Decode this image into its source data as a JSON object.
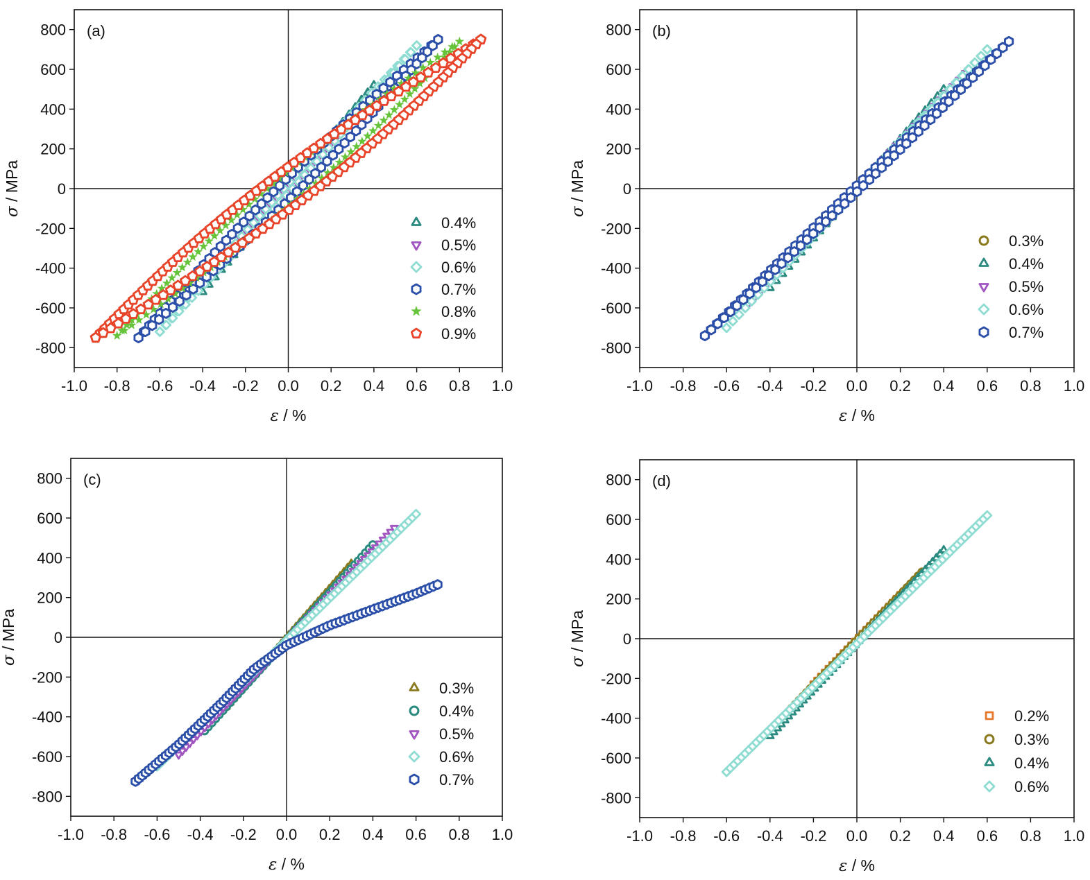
{
  "chart_data": [
    {
      "type": "scatter",
      "panel_label": "(a)",
      "xlabel_symbol": "ε",
      "xlabel_unit": " / %",
      "ylabel_symbol": "σ",
      "ylabel_unit": " / MPa",
      "xlim": [
        -1.0,
        1.0
      ],
      "ylim": [
        -900,
        900
      ],
      "xticks": [
        -1.0,
        -0.8,
        -0.6,
        -0.4,
        -0.2,
        0.0,
        0.2,
        0.4,
        0.6,
        0.8,
        1.0
      ],
      "xtick_labels": [
        "-1.0",
        "-0.8",
        "-0.6",
        "-0.4",
        "-0.2",
        "0.0",
        "0.2",
        "0.4",
        "0.6",
        "0.8",
        "1.0"
      ],
      "yticks": [
        -800,
        -600,
        -400,
        -200,
        0,
        200,
        400,
        600,
        800
      ],
      "ytick_labels": [
        "-800",
        "-600",
        "-400",
        "-200",
        "0",
        "200",
        "400",
        "600",
        "800"
      ],
      "legend_position": "bottom-right",
      "series": [
        {
          "name": "0.4%",
          "marker": "triangle-up",
          "color": "#2a8a80",
          "amplitude": 0.4,
          "peak_stress": 520,
          "loop_width": 0.01
        },
        {
          "name": "0.5%",
          "marker": "triangle-down",
          "color": "#a055c0",
          "amplitude": 0.5,
          "peak_stress": 585,
          "loop_width": 0.02
        },
        {
          "name": "0.6%",
          "marker": "diamond",
          "color": "#8fdcd2",
          "amplitude": 0.6,
          "peak_stress": 720,
          "loop_width": 0.04
        },
        {
          "name": "0.7%",
          "marker": "hexagon",
          "color": "#2b4fa8",
          "amplitude": 0.7,
          "peak_stress": 750,
          "loop_width": 0.11
        },
        {
          "name": "0.8%",
          "marker": "star",
          "color": "#66c43a",
          "amplitude": 0.8,
          "peak_stress": 740,
          "loop_width": 0.2
        },
        {
          "name": "0.9%",
          "marker": "pentagon",
          "color": "#e8442a",
          "amplitude": 0.9,
          "peak_stress": 750,
          "loop_width": 0.27
        }
      ]
    },
    {
      "type": "scatter",
      "panel_label": "(b)",
      "xlabel_symbol": "ε",
      "xlabel_unit": " / %",
      "ylabel_symbol": "σ",
      "ylabel_unit": " / MPa",
      "xlim": [
        -1.0,
        1.0
      ],
      "ylim": [
        -900,
        900
      ],
      "xticks": [
        -1.0,
        -0.8,
        -0.6,
        -0.4,
        -0.2,
        0.0,
        0.2,
        0.4,
        0.6,
        0.8,
        1.0
      ],
      "xtick_labels": [
        "-1.0",
        "-0.8",
        "-0.6",
        "-0.4",
        "-0.2",
        "0.0",
        "0.2",
        "0.4",
        "0.6",
        "0.8",
        "1.0"
      ],
      "yticks": [
        -800,
        -600,
        -400,
        -200,
        0,
        200,
        400,
        600,
        800
      ],
      "ytick_labels": [
        "-800",
        "-600",
        "-400",
        "-200",
        "0",
        "200",
        "400",
        "600",
        "800"
      ],
      "legend_position": "bottom-right",
      "series": [
        {
          "name": "0.3%",
          "marker": "circle",
          "color": "#8a7a1e",
          "amplitude": 0.3,
          "peak_stress": 340,
          "loop_width": 0.0
        },
        {
          "name": "0.4%",
          "marker": "triangle-up",
          "color": "#2a8a80",
          "amplitude": 0.4,
          "peak_stress": 500,
          "loop_width": 0.0
        },
        {
          "name": "0.5%",
          "marker": "triangle-down",
          "color": "#a055c0",
          "amplitude": 0.5,
          "peak_stress": 580,
          "loop_width": 0.01
        },
        {
          "name": "0.6%",
          "marker": "diamond",
          "color": "#8fdcd2",
          "amplitude": 0.6,
          "peak_stress": 700,
          "loop_width": 0.01
        },
        {
          "name": "0.7%",
          "marker": "hexagon",
          "color": "#2b4fa8",
          "amplitude": 0.7,
          "peak_stress": 740,
          "loop_width": 0.03
        }
      ]
    },
    {
      "type": "scatter",
      "panel_label": "(c)",
      "xlabel_symbol": "ε",
      "xlabel_unit": " / %",
      "ylabel_symbol": "σ",
      "ylabel_unit": " / MPa",
      "xlim": [
        -1.0,
        1.0
      ],
      "ylim": [
        -900,
        900
      ],
      "xticks": [
        -1.0,
        -0.8,
        -0.6,
        -0.4,
        -0.2,
        0.0,
        0.2,
        0.4,
        0.6,
        0.8,
        1.0
      ],
      "xtick_labels": [
        "-1.0",
        "-0.8",
        "-0.6",
        "-0.4",
        "-0.2",
        "0.0",
        "0.2",
        "0.4",
        "0.6",
        "0.8",
        "1.0"
      ],
      "yticks": [
        -800,
        -600,
        -400,
        -200,
        0,
        200,
        400,
        600,
        800
      ],
      "ytick_labels": [
        "-800",
        "-600",
        "-400",
        "-200",
        "0",
        "200",
        "400",
        "600",
        "800"
      ],
      "legend_position": "bottom-right",
      "series": [
        {
          "name": "0.3%",
          "marker": "triangle-up",
          "color": "#8a7a1e",
          "x": [
            -0.28,
            0.3
          ],
          "y": [
            -350,
            370
          ]
        },
        {
          "name": "0.4%",
          "marker": "circle",
          "color": "#2a8a80",
          "x": [
            -0.38,
            0.4
          ],
          "y": [
            -470,
            465
          ]
        },
        {
          "name": "0.5%",
          "marker": "triangle-down",
          "color": "#a055c0",
          "x": [
            -0.5,
            0.5
          ],
          "y": [
            -590,
            550
          ]
        },
        {
          "name": "0.6%",
          "marker": "diamond",
          "color": "#8fdcd2",
          "x": [
            -0.6,
            0.6
          ],
          "y": [
            -650,
            620
          ]
        },
        {
          "name": "0.7%",
          "marker": "hexagon",
          "color": "#2b4fa8",
          "x": [
            -0.7,
            -0.5,
            -0.3,
            -0.15,
            0.0,
            0.2,
            0.4,
            0.6,
            0.7
          ],
          "y": [
            -725,
            -540,
            -330,
            -160,
            -40,
            60,
            140,
            220,
            265
          ]
        }
      ]
    },
    {
      "type": "scatter",
      "panel_label": "(d)",
      "xlabel_symbol": "ε",
      "xlabel_unit": " / %",
      "ylabel_symbol": "σ",
      "ylabel_unit": " / MPa",
      "xlim": [
        -1.0,
        1.0
      ],
      "ylim": [
        -900,
        900
      ],
      "xticks": [
        -1.0,
        -0.8,
        -0.6,
        -0.4,
        -0.2,
        0.0,
        0.2,
        0.4,
        0.6,
        0.8,
        1.0
      ],
      "xtick_labels": [
        "-1.0",
        "-0.8",
        "-0.6",
        "-0.4",
        "-0.2",
        "0.0",
        "0.2",
        "0.4",
        "0.6",
        "0.8",
        "1.0"
      ],
      "yticks": [
        -800,
        -600,
        -400,
        -200,
        0,
        200,
        400,
        600,
        800
      ],
      "ytick_labels": [
        "-800",
        "-600",
        "-400",
        "-200",
        "0",
        "200",
        "400",
        "600",
        "800"
      ],
      "legend_position": "bottom-right",
      "series": [
        {
          "name": "0.2%",
          "marker": "square",
          "color": "#e8772a",
          "x": [
            -0.2,
            0.2
          ],
          "y": [
            -230,
            220
          ]
        },
        {
          "name": "0.3%",
          "marker": "circle",
          "color": "#8a7a1e",
          "x": [
            -0.3,
            0.3
          ],
          "y": [
            -350,
            335
          ]
        },
        {
          "name": "0.4%",
          "marker": "triangle-up",
          "color": "#2a8a80",
          "x": [
            -0.4,
            0.4
          ],
          "y": [
            -490,
            445
          ]
        },
        {
          "name": "0.6%",
          "marker": "diamond",
          "color": "#8fdcd2",
          "x": [
            -0.6,
            0.6
          ],
          "y": [
            -670,
            620
          ]
        }
      ]
    }
  ]
}
